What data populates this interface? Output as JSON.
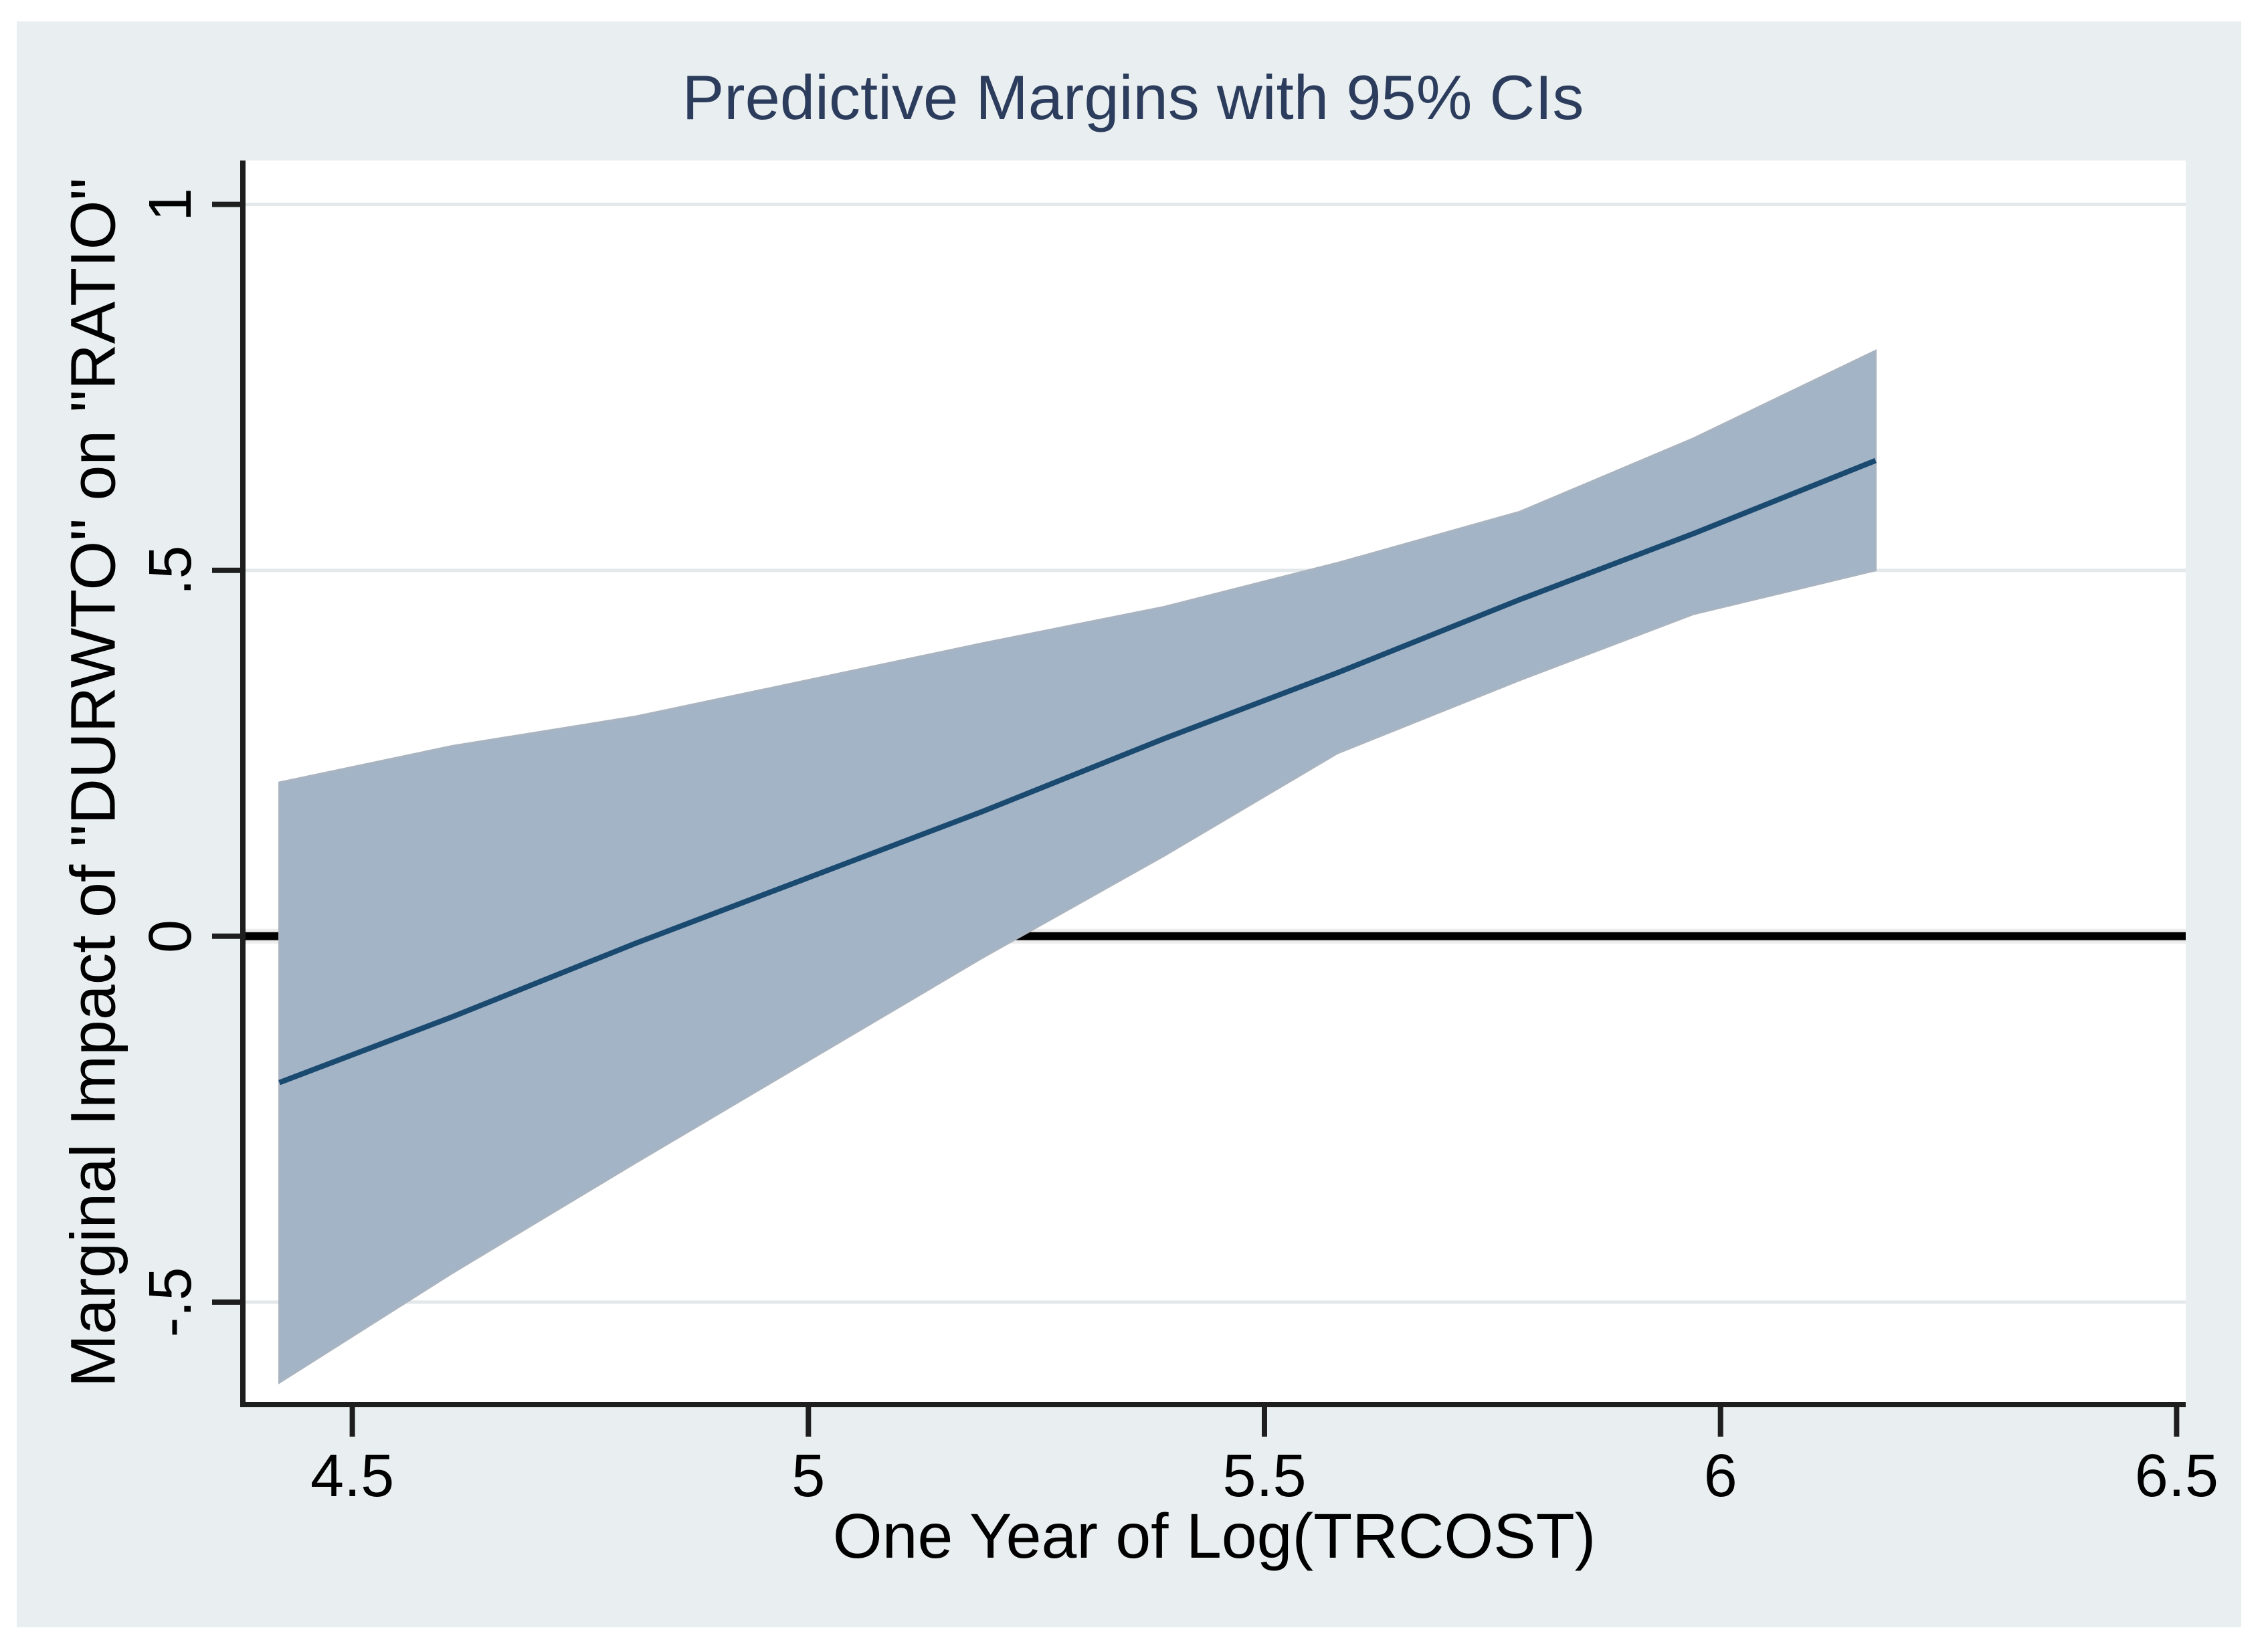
{
  "page": {
    "title": "Predictive Margins with 95% CIs"
  },
  "chart_data": {
    "type": "line",
    "title": "Predictive Margins with 95% CIs",
    "xlabel": "One Year of Log(TRCOST)",
    "ylabel": "Marginal Impact of \"DURWTO\" on \"RATIO\"",
    "x": [
      4.42,
      4.61,
      4.81,
      5.0,
      5.19,
      5.39,
      5.58,
      5.78,
      5.97,
      6.17
    ],
    "series": [
      {
        "name": "Predictive margin",
        "values": [
          -0.2,
          -0.11,
          -0.01,
          0.08,
          0.17,
          0.27,
          0.36,
          0.46,
          0.55,
          0.65
        ]
      },
      {
        "name": "95% CI upper bound",
        "values": [
          0.21,
          0.26,
          0.3,
          0.35,
          0.4,
          0.45,
          0.51,
          0.58,
          0.68,
          0.8
        ]
      },
      {
        "name": "95% CI lower bound",
        "values": [
          -0.61,
          -0.46,
          -0.31,
          -0.17,
          -0.03,
          0.11,
          0.25,
          0.35,
          0.44,
          0.5
        ]
      }
    ],
    "x_ticks": [
      4.5,
      5,
      5.5,
      6,
      6.5
    ],
    "x_tick_labels": [
      "4.5",
      "5",
      "5.5",
      "6",
      "6.5"
    ],
    "y_ticks": [
      1,
      0.5,
      0,
      -0.5
    ],
    "y_tick_labels": [
      "1",
      ".5",
      "0",
      "-.5"
    ],
    "xlim": [
      4.38,
      6.51
    ],
    "ylim": [
      -0.64,
      1.06
    ],
    "reference_line_y": 0,
    "grid": "horizontal-only",
    "legend_position": "none",
    "colors": {
      "ci_band_fill": "#a3b4c7",
      "ci_band_edge": "#a9b4c0",
      "margin_line": "#1b4a70",
      "zero_line": "#000000",
      "zero_gridline_halo": "#ececec",
      "gridline": "#e3e8eb",
      "axis": "#1e1e1e",
      "title_text": "#2c3c5c",
      "axis_text": "#000000",
      "figure_background": "#e9eff1",
      "plot_background": "#ffffff",
      "page_background": "#ffffff"
    }
  }
}
